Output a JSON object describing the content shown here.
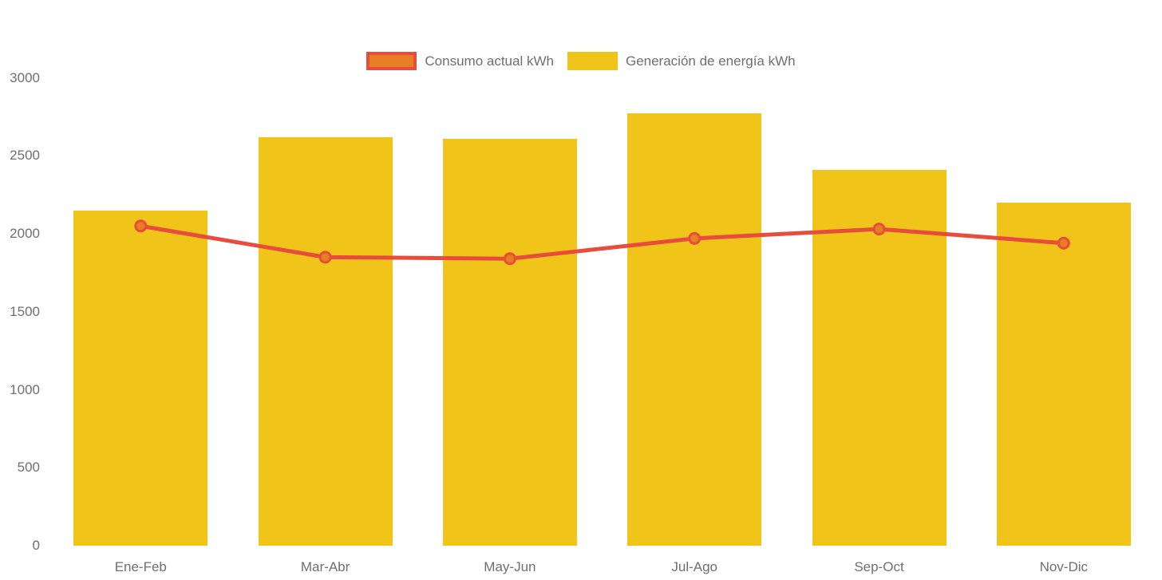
{
  "chart_data": {
    "type": "bar",
    "subtype": "bar-with-line-overlay",
    "title": "",
    "xlabel": "",
    "ylabel": "",
    "categories": [
      "Ene-Feb",
      "Mar-Abr",
      "May-Jun",
      "Jul-Ago",
      "Sep-Oct",
      "Nov-Dic"
    ],
    "series": [
      {
        "name": "Consumo actual kWh",
        "type": "line",
        "color": "#E74C3C",
        "marker_color": "#E67E22",
        "values": [
          2050,
          1850,
          1840,
          1970,
          2030,
          1940
        ]
      },
      {
        "name": "Generación de energía kWh",
        "type": "bar",
        "color": "#F0C419",
        "values": [
          2150,
          2620,
          2610,
          2770,
          2410,
          2200
        ]
      }
    ],
    "ylim": [
      0,
      3000
    ],
    "y_ticks": [
      0,
      500,
      1000,
      1500,
      2000,
      2500,
      3000
    ],
    "grid": false,
    "legend_position": "top-center",
    "background": "#FFFFFF",
    "axis_text_color": "#6F6F6F"
  }
}
